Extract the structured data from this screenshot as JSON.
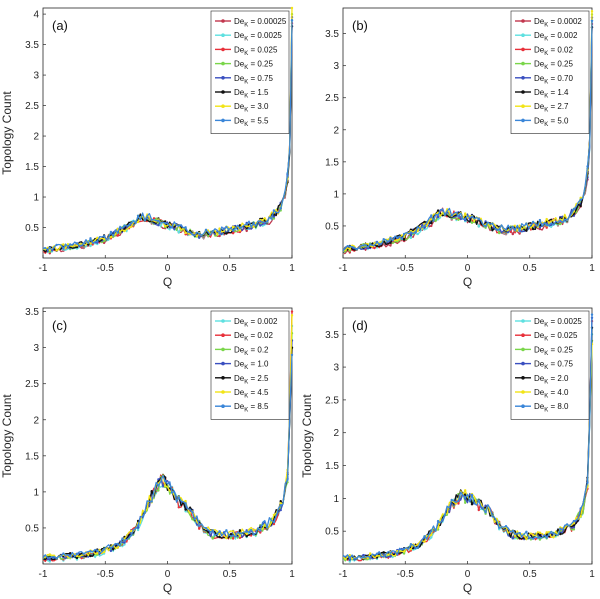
{
  "figure": {
    "description_note": "Four-panel figure of topology count vs Q"
  },
  "chart_data": [
    {
      "type": "line",
      "panel_label": "(a)",
      "xlabel": "Q",
      "ylabel": "Topology Count",
      "xlim": [
        -1,
        1
      ],
      "ylim": [
        0,
        4.1
      ],
      "xticks": [
        "-1",
        "-0.5",
        "0",
        "0.5",
        "1"
      ],
      "yticks": [
        "0.5",
        "1",
        "1.5",
        "2",
        "2.5",
        "3",
        "3.5",
        "4"
      ],
      "legend_position": "top-right",
      "series": [
        {
          "name": "Dek = 0.00025",
          "legend_main": "De",
          "legend_sub": "K",
          "legend_value": " = 0.00025",
          "color": "#c2364d",
          "end": 3.8
        },
        {
          "name": "Dek = 0.0025",
          "legend_main": "De",
          "legend_sub": "K",
          "legend_value": " = 0.0025",
          "color": "#5ee0e0",
          "end": 3.9
        },
        {
          "name": "Dek = 0.025",
          "legend_main": "De",
          "legend_sub": "K",
          "legend_value": " = 0.025",
          "color": "#e8303a",
          "end": 3.85
        },
        {
          "name": "Dek = 0.25",
          "legend_main": "De",
          "legend_sub": "K",
          "legend_value": " = 0.25",
          "color": "#7ad64a",
          "end": 4.0
        },
        {
          "name": "Dek = 0.75",
          "legend_main": "De",
          "legend_sub": "K",
          "legend_value": " = 0.75",
          "color": "#3a4fc0",
          "end": 3.95
        },
        {
          "name": "Dek = 1.5",
          "legend_main": "De",
          "legend_sub": "K",
          "legend_value": " = 1.5",
          "color": "#111111",
          "end": 3.8
        },
        {
          "name": "Dek = 3.0",
          "legend_main": "De",
          "legend_sub": "K",
          "legend_value": " = 3.0",
          "color": "#f2e416",
          "end": 4.1
        },
        {
          "name": "Dek = 5.5",
          "legend_main": "De",
          "legend_sub": "K",
          "legend_value": " = 5.5",
          "color": "#3a86d8",
          "end": 3.9
        }
      ],
      "shape": {
        "x": [
          -1,
          -0.7,
          -0.5,
          -0.35,
          -0.2,
          -0.05,
          0.05,
          0.15,
          0.25,
          0.4,
          0.6,
          0.8,
          0.9,
          0.95,
          0.98,
          1.0
        ],
        "y": [
          0.12,
          0.22,
          0.32,
          0.48,
          0.68,
          0.58,
          0.52,
          0.45,
          0.38,
          0.42,
          0.5,
          0.6,
          0.8,
          1.1,
          1.6,
          3.9
        ]
      }
    },
    {
      "type": "line",
      "panel_label": "(b)",
      "xlabel": "Q",
      "ylabel": "",
      "xlim": [
        -1,
        1
      ],
      "ylim": [
        0,
        3.9
      ],
      "xticks": [
        "-1",
        "-0.5",
        "0",
        "0.5",
        "1"
      ],
      "yticks": [
        "0.5",
        "1",
        "1.5",
        "2",
        "2.5",
        "3",
        "3.5"
      ],
      "legend_position": "top-right",
      "series": [
        {
          "name": "Dek = 0.0002",
          "legend_main": "De",
          "legend_sub": "K",
          "legend_value": " = 0.0002",
          "color": "#c2364d",
          "end": 3.6
        },
        {
          "name": "Dek = 0.002",
          "legend_main": "De",
          "legend_sub": "K",
          "legend_value": " = 0.002",
          "color": "#5ee0e0",
          "end": 3.7
        },
        {
          "name": "Dek = 0.02",
          "legend_main": "De",
          "legend_sub": "K",
          "legend_value": " = 0.02",
          "color": "#e8303a",
          "end": 3.65
        },
        {
          "name": "Dek = 0.25",
          "legend_main": "De",
          "legend_sub": "K",
          "legend_value": " = 0.25",
          "color": "#7ad64a",
          "end": 3.8
        },
        {
          "name": "Dek = 0.70",
          "legend_main": "De",
          "legend_sub": "K",
          "legend_value": " = 0.70",
          "color": "#3a4fc0",
          "end": 3.75
        },
        {
          "name": "Dek = 1.4",
          "legend_main": "De",
          "legend_sub": "K",
          "legend_value": " = 1.4",
          "color": "#111111",
          "end": 3.6
        },
        {
          "name": "Dek = 2.7",
          "legend_main": "De",
          "legend_sub": "K",
          "legend_value": " = 2.7",
          "color": "#f2e416",
          "end": 3.85
        },
        {
          "name": "Dek = 5.0",
          "legend_main": "De",
          "legend_sub": "K",
          "legend_value": " = 5.0",
          "color": "#3a86d8",
          "end": 3.7
        }
      ],
      "shape": {
        "x": [
          -1,
          -0.7,
          -0.5,
          -0.35,
          -0.2,
          -0.05,
          0.05,
          0.15,
          0.25,
          0.4,
          0.6,
          0.8,
          0.9,
          0.95,
          0.98,
          1.0
        ],
        "y": [
          0.13,
          0.22,
          0.33,
          0.5,
          0.72,
          0.65,
          0.6,
          0.52,
          0.45,
          0.45,
          0.52,
          0.62,
          0.82,
          1.1,
          1.6,
          3.7
        ]
      }
    },
    {
      "type": "line",
      "panel_label": "(c)",
      "xlabel": "Q",
      "ylabel": "Topology Count",
      "xlim": [
        -1,
        1
      ],
      "ylim": [
        0,
        3.55
      ],
      "xticks": [
        "-1",
        "-0.5",
        "0",
        "0.5",
        "1"
      ],
      "yticks": [
        "0.5",
        "1",
        "1.5",
        "2",
        "2.5",
        "3",
        "3.5"
      ],
      "legend_position": "top-right",
      "series": [
        {
          "name": "Dek = 0.002",
          "legend_main": "De",
          "legend_sub": "K",
          "legend_value": " = 0.002",
          "color": "#5ee0e0",
          "end": 3.3
        },
        {
          "name": "Dek = 0.02",
          "legend_main": "De",
          "legend_sub": "K",
          "legend_value": " = 0.02",
          "color": "#e8303a",
          "end": 3.5
        },
        {
          "name": "Dek = 0.2",
          "legend_main": "De",
          "legend_sub": "K",
          "legend_value": " = 0.2",
          "color": "#7ad64a",
          "end": 3.2
        },
        {
          "name": "Dek = 1.0",
          "legend_main": "De",
          "legend_sub": "K",
          "legend_value": " = 1.0",
          "color": "#3a4fc0",
          "end": 3.1
        },
        {
          "name": "Dek = 2.5",
          "legend_main": "De",
          "legend_sub": "K",
          "legend_value": " = 2.5",
          "color": "#111111",
          "end": 3.0
        },
        {
          "name": "Dek = 4.5",
          "legend_main": "De",
          "legend_sub": "K",
          "legend_value": " = 4.5",
          "color": "#f2e416",
          "end": 3.45
        },
        {
          "name": "Dek = 8.5",
          "legend_main": "De",
          "legend_sub": "K",
          "legend_value": " = 8.5",
          "color": "#3a86d8",
          "end": 2.9
        }
      ],
      "shape": {
        "x": [
          -1,
          -0.6,
          -0.4,
          -0.25,
          -0.15,
          -0.05,
          0.02,
          0.1,
          0.18,
          0.25,
          0.35,
          0.5,
          0.7,
          0.85,
          0.93,
          0.97,
          1.0
        ],
        "y": [
          0.08,
          0.14,
          0.25,
          0.5,
          0.85,
          1.18,
          1.05,
          0.85,
          0.75,
          0.55,
          0.42,
          0.4,
          0.45,
          0.6,
          0.9,
          1.3,
          3.2
        ]
      }
    },
    {
      "type": "line",
      "panel_label": "(d)",
      "xlabel": "Q",
      "ylabel": "Topology Count",
      "xlim": [
        -1,
        1
      ],
      "ylim": [
        0,
        3.9
      ],
      "xticks": [
        "-1",
        "-0.5",
        "0",
        "0.5",
        "1"
      ],
      "yticks": [
        "0.5",
        "1",
        "1.5",
        "2",
        "2.5",
        "3",
        "3.5"
      ],
      "legend_position": "top-right",
      "series": [
        {
          "name": "Dek = 0.0025",
          "legend_main": "De",
          "legend_sub": "K",
          "legend_value": " = 0.0025",
          "color": "#5ee0e0",
          "end": 3.5
        },
        {
          "name": "Dek = 0.025",
          "legend_main": "De",
          "legend_sub": "K",
          "legend_value": " = 0.025",
          "color": "#e8303a",
          "end": 3.7
        },
        {
          "name": "Dek = 0.25",
          "legend_main": "De",
          "legend_sub": "K",
          "legend_value": " = 0.25",
          "color": "#7ad64a",
          "end": 3.4
        },
        {
          "name": "Dek = 0.75",
          "legend_main": "De",
          "legend_sub": "K",
          "legend_value": " = 0.75",
          "color": "#3a4fc0",
          "end": 3.75
        },
        {
          "name": "Dek = 2.0",
          "legend_main": "De",
          "legend_sub": "K",
          "legend_value": " = 2.0",
          "color": "#111111",
          "end": 3.6
        },
        {
          "name": "Dek = 4.0",
          "legend_main": "De",
          "legend_sub": "K",
          "legend_value": " = 4.0",
          "color": "#f2e416",
          "end": 3.35
        },
        {
          "name": "Dek = 8.0",
          "legend_main": "De",
          "legend_sub": "K",
          "legend_value": " = 8.0",
          "color": "#3a86d8",
          "end": 3.8
        }
      ],
      "shape": {
        "x": [
          -1,
          -0.6,
          -0.4,
          -0.25,
          -0.15,
          -0.05,
          0.02,
          0.1,
          0.18,
          0.25,
          0.35,
          0.5,
          0.7,
          0.85,
          0.93,
          0.97,
          1.0
        ],
        "y": [
          0.08,
          0.15,
          0.28,
          0.55,
          0.85,
          1.05,
          1.0,
          0.9,
          0.8,
          0.6,
          0.45,
          0.42,
          0.45,
          0.58,
          0.85,
          1.3,
          3.6
        ]
      }
    }
  ]
}
